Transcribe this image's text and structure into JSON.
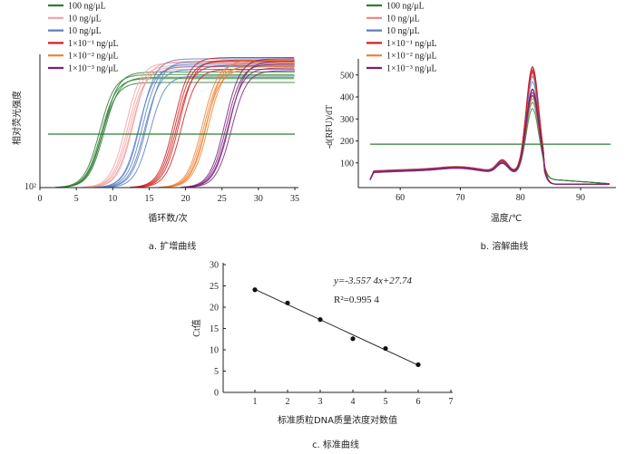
{
  "chart_data": [
    {
      "type": "line",
      "title": "a. 扩增曲线",
      "xlabel": "循环数/次",
      "ylabel": "相对荧光强度",
      "xlim": [
        0,
        35
      ],
      "xticks": [
        "0",
        "5",
        "10",
        "15",
        "20",
        "25",
        "30",
        "35"
      ],
      "ytick_label": "10²",
      "ylog": true,
      "threshold": "Ct threshold line",
      "series": [
        {
          "name": "100 ng/μL",
          "color": "#2e7d32",
          "ct": [
            6.6,
            6.8,
            6.9,
            7.1,
            7.2
          ],
          "plateau": [
            0.86,
            0.83,
            0.8,
            0.88,
            0.84
          ]
        },
        {
          "name": "10 ng/μL",
          "color": "#f4a0a0",
          "ct": [
            10.2,
            10.5,
            10.7,
            11.0,
            11.2
          ],
          "plateau": [
            0.95,
            0.93,
            0.9,
            0.92,
            0.96
          ]
        },
        {
          "name": "10 ng/μL",
          "color": "#5b7fc4",
          "ct": [
            12.2,
            12.5,
            12.8,
            13.1,
            13.5,
            12.0
          ],
          "plateau": [
            0.98,
            0.94,
            0.9,
            0.96,
            0.85,
            0.92
          ]
        },
        {
          "name": "1×10⁻¹ ng/μL",
          "color": "#d32020",
          "ct": [
            16.8,
            17.0,
            17.2,
            17.5,
            17.8
          ],
          "plateau": [
            0.99,
            0.96,
            0.93,
            0.97,
            0.9
          ]
        },
        {
          "name": "1×10⁻² ng/μL",
          "color": "#f07f30",
          "ct": [
            20.7,
            20.9,
            21.1,
            21.3,
            21.5
          ],
          "plateau": [
            0.95,
            0.92,
            0.9,
            0.97,
            0.93
          ]
        },
        {
          "name": "1×10⁻³ ng/μL",
          "color": "#7b1f7b",
          "ct": [
            23.8,
            24.0,
            24.2,
            24.4,
            24.7
          ],
          "plateau": [
            0.98,
            0.94,
            0.91,
            0.96,
            0.89
          ]
        }
      ]
    },
    {
      "type": "line",
      "title": "b. 溶解曲线",
      "xlabel": "温度/℃",
      "ylabel": "-d(RFU)/dT",
      "xlim": [
        55,
        95
      ],
      "ylim": [
        0,
        560
      ],
      "xticks": [
        "60",
        "70",
        "80",
        "90"
      ],
      "yticks": [
        "100",
        "200",
        "300",
        "400",
        "500"
      ],
      "threshold": 185,
      "peak_temperature": 82,
      "series": [
        {
          "name": "100 ng/μL",
          "color": "#2e7d32",
          "peaks": [
            360,
            440
          ]
        },
        {
          "name": "10 ng/μL",
          "color": "#f08080",
          "peaks": [
            500,
            530
          ]
        },
        {
          "name": "10 ng/μL",
          "color": "#5b7fc4",
          "peaks": [
            480,
            550
          ]
        },
        {
          "name": "1×10⁻¹ ng/μL",
          "color": "#d32020",
          "peaks": [
            520,
            545
          ]
        },
        {
          "name": "1×10⁻² ng/μL",
          "color": "#f07f30",
          "peaks": [
            400,
            430
          ]
        },
        {
          "name": "1×10⁻³ ng/μL",
          "color": "#7b1f7b",
          "peaks": [
            420,
            450
          ]
        }
      ]
    },
    {
      "type": "scatter",
      "title": "c. 标准曲线",
      "xlabel": "标准质粒DNA质量浓度对数值",
      "ylabel": "Ct值",
      "xlim": [
        0,
        7
      ],
      "ylim": [
        0,
        30
      ],
      "xticks": [
        "1",
        "2",
        "3",
        "4",
        "5",
        "6",
        "7"
      ],
      "yticks": [
        "0",
        "5",
        "10",
        "15",
        "20",
        "25",
        "30"
      ],
      "x": [
        1,
        2,
        3,
        4,
        5,
        6
      ],
      "y": [
        24.1,
        21.0,
        17.1,
        12.6,
        10.3,
        6.5
      ],
      "fit": {
        "slope": -3.5574,
        "intercept": 27.74
      },
      "equation": "y=-3.557 4x+27.74",
      "r2": "R²=0.995 4"
    }
  ]
}
